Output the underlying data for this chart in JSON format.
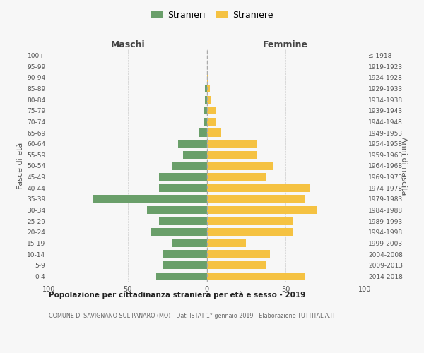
{
  "age_groups": [
    "0-4",
    "5-9",
    "10-14",
    "15-19",
    "20-24",
    "25-29",
    "30-34",
    "35-39",
    "40-44",
    "45-49",
    "50-54",
    "55-59",
    "60-64",
    "65-69",
    "70-74",
    "75-79",
    "80-84",
    "85-89",
    "90-94",
    "95-99",
    "100+"
  ],
  "birth_years": [
    "2014-2018",
    "2009-2013",
    "2004-2008",
    "1999-2003",
    "1994-1998",
    "1989-1993",
    "1984-1988",
    "1979-1983",
    "1974-1978",
    "1969-1973",
    "1964-1968",
    "1959-1963",
    "1954-1958",
    "1949-1953",
    "1944-1948",
    "1939-1943",
    "1934-1938",
    "1929-1933",
    "1924-1928",
    "1919-1923",
    "≤ 1918"
  ],
  "males": [
    32,
    28,
    28,
    22,
    35,
    30,
    38,
    72,
    30,
    30,
    22,
    15,
    18,
    5,
    2,
    2,
    1,
    1,
    0,
    0,
    0
  ],
  "females": [
    62,
    38,
    40,
    25,
    55,
    55,
    70,
    62,
    65,
    38,
    42,
    32,
    32,
    9,
    6,
    6,
    3,
    2,
    1,
    0,
    0
  ],
  "male_color": "#6a9f6a",
  "female_color": "#f5c242",
  "title1": "Popolazione per cittadinanza straniera per età e sesso - 2019",
  "title2": "COMUNE DI SAVIGNANO SUL PANARO (MO) - Dati ISTAT 1° gennaio 2019 - Elaborazione TUTTITALIA.IT",
  "legend_male": "Stranieri",
  "legend_female": "Straniere",
  "header_left": "Maschi",
  "header_right": "Femmine",
  "ylabel_left": "Fasce di età",
  "ylabel_right": "Anni di nascita",
  "xlim": 100,
  "background_color": "#f7f7f7",
  "grid_color": "#cccccc"
}
